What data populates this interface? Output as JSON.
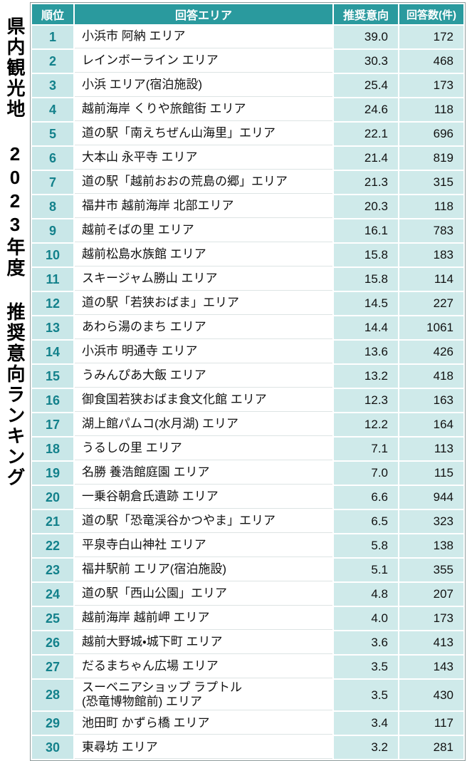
{
  "chart_data": {
    "type": "table",
    "title": "県内観光地 2023年度 推奨意向ランキング",
    "columns": [
      "順位",
      "回答エリア",
      "推奨意向",
      "回答数(件)"
    ],
    "rows": [
      {
        "rank": "1",
        "area": "小浜市 阿納 エリア",
        "score": "39.0",
        "count": "172"
      },
      {
        "rank": "2",
        "area": "レインボーライン エリア",
        "score": "30.3",
        "count": "468"
      },
      {
        "rank": "3",
        "area": "小浜 エリア(宿泊施設)",
        "score": "25.4",
        "count": "173"
      },
      {
        "rank": "4",
        "area": "越前海岸 くりや旅館街 エリア",
        "score": "24.6",
        "count": "118"
      },
      {
        "rank": "5",
        "area": "道の駅「南えちぜん山海里」エリア",
        "score": "22.1",
        "count": "696"
      },
      {
        "rank": "6",
        "area": "大本山 永平寺 エリア",
        "score": "21.4",
        "count": "819"
      },
      {
        "rank": "7",
        "area": "道の駅「越前おおの荒島の郷」エリア",
        "score": "21.3",
        "count": "315"
      },
      {
        "rank": "8",
        "area": "福井市 越前海岸 北部エリア",
        "score": "20.3",
        "count": "118"
      },
      {
        "rank": "9",
        "area": "越前そばの里 エリア",
        "score": "16.1",
        "count": "783"
      },
      {
        "rank": "10",
        "area": "越前松島水族館 エリア",
        "score": "15.8",
        "count": "183"
      },
      {
        "rank": "11",
        "area": "スキージャム勝山 エリア",
        "score": "15.8",
        "count": "114"
      },
      {
        "rank": "12",
        "area": "道の駅「若狭おばま」エリア",
        "score": "14.5",
        "count": "227"
      },
      {
        "rank": "13",
        "area": "あわら湯のまち エリア",
        "score": "14.4",
        "count": "1061"
      },
      {
        "rank": "14",
        "area": "小浜市 明通寺 エリア",
        "score": "13.6",
        "count": "426"
      },
      {
        "rank": "15",
        "area": "うみんぴあ大飯 エリア",
        "score": "13.2",
        "count": "418"
      },
      {
        "rank": "16",
        "area": "御食国若狭おばま食文化館 エリア",
        "score": "12.3",
        "count": "163"
      },
      {
        "rank": "17",
        "area": "湖上館パムコ(水月湖) エリア",
        "score": "12.2",
        "count": "164"
      },
      {
        "rank": "18",
        "area": "うるしの里 エリア",
        "score": "7.1",
        "count": "113"
      },
      {
        "rank": "19",
        "area": "名勝 養浩館庭園 エリア",
        "score": "7.0",
        "count": "115"
      },
      {
        "rank": "20",
        "area": "一乗谷朝倉氏遺跡 エリア",
        "score": "6.6",
        "count": "944"
      },
      {
        "rank": "21",
        "area": "道の駅「恐竜渓谷かつやま」エリア",
        "score": "6.5",
        "count": "323"
      },
      {
        "rank": "22",
        "area": "平泉寺白山神社 エリア",
        "score": "5.8",
        "count": "138"
      },
      {
        "rank": "23",
        "area": "福井駅前 エリア(宿泊施設)",
        "score": "5.1",
        "count": "355"
      },
      {
        "rank": "24",
        "area": "道の駅「西山公園」エリア",
        "score": "4.8",
        "count": "207"
      },
      {
        "rank": "25",
        "area": "越前海岸 越前岬 エリア",
        "score": "4.0",
        "count": "173"
      },
      {
        "rank": "26",
        "area": "越前大野城・城下町 エリア",
        "score": "3.6",
        "count": "413"
      },
      {
        "rank": "27",
        "area": "だるまちゃん広場 エリア",
        "score": "3.5",
        "count": "143"
      },
      {
        "rank": "28",
        "area": "スーベニアショップ ラプトル\n(恐竜博物館前) エリア",
        "score": "3.5",
        "count": "430"
      },
      {
        "rank": "29",
        "area": "池田町 かずら橋 エリア",
        "score": "3.4",
        "count": "117"
      },
      {
        "rank": "30",
        "area": "東尋坊 エリア",
        "score": "3.2",
        "count": "281"
      }
    ]
  },
  "colors": {
    "header_bg": "#2a9a9e",
    "header_text": "#ffffff",
    "rank_cell_bg": "#c9e7e8",
    "rank_text": "#13818b",
    "value_cell_bg": "#cfeaea",
    "body_text": "#111111"
  }
}
